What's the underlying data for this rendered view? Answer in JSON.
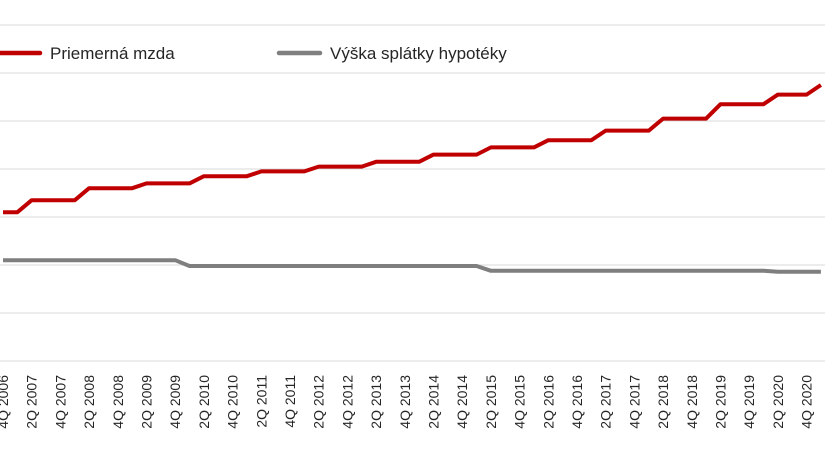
{
  "chart_data": {
    "type": "line",
    "title": "",
    "xlabel": "",
    "ylabel": "",
    "grid": true,
    "legend_position": "top-left",
    "ylim": [
      0,
      7
    ],
    "x": [
      "4Q 2006",
      "1Q 2007",
      "2Q 2007",
      "3Q 2007",
      "4Q 2007",
      "1Q 2008",
      "2Q 2008",
      "3Q 2008",
      "4Q 2008",
      "1Q 2009",
      "2Q 2009",
      "3Q 2009",
      "4Q 2009",
      "1Q 2010",
      "2Q 2010",
      "3Q 2010",
      "4Q 2010",
      "1Q 2011",
      "2Q 2011",
      "3Q 2011",
      "4Q 2011",
      "1Q 2012",
      "2Q 2012",
      "3Q 2012",
      "4Q 2012",
      "1Q 2013",
      "2Q 2013",
      "3Q 2013",
      "4Q 2013",
      "1Q 2014",
      "2Q 2014",
      "3Q 2014",
      "4Q 2014",
      "1Q 2015",
      "2Q 2015",
      "3Q 2015",
      "4Q 2015",
      "1Q 2016",
      "2Q 2016",
      "3Q 2016",
      "4Q 2016",
      "1Q 2017",
      "2Q 2017",
      "3Q 2017",
      "4Q 2017",
      "1Q 2018",
      "2Q 2018",
      "3Q 2018",
      "4Q 2018",
      "1Q 2019",
      "2Q 2019",
      "3Q 2019",
      "4Q 2019",
      "1Q 2020",
      "2Q 2020",
      "3Q 2020",
      "4Q 2020",
      "1Q 2021"
    ],
    "tick_labels": [
      "4Q 2006",
      "2Q 2007",
      "4Q 2007",
      "2Q 2008",
      "4Q 2008",
      "2Q 2009",
      "4Q 2009",
      "2Q 2010",
      "4Q 2010",
      "2Q 2011",
      "4Q 2011",
      "2Q 2012",
      "4Q 2012",
      "2Q 2013",
      "4Q 2013",
      "2Q 2014",
      "4Q 2014",
      "2Q 2015",
      "4Q 2015",
      "2Q 2016",
      "4Q 2016",
      "2Q 2017",
      "4Q 2017",
      "2Q 2018",
      "4Q 2018",
      "2Q 2019",
      "4Q 2019",
      "2Q 2020",
      "4Q 2020"
    ],
    "series": [
      {
        "name": "Priemerná mzda",
        "color": "#c00000",
        "values": [
          3.1,
          3.1,
          3.35,
          3.35,
          3.35,
          3.35,
          3.6,
          3.6,
          3.6,
          3.6,
          3.7,
          3.7,
          3.7,
          3.7,
          3.85,
          3.85,
          3.85,
          3.85,
          3.95,
          3.95,
          3.95,
          3.95,
          4.05,
          4.05,
          4.05,
          4.05,
          4.15,
          4.15,
          4.15,
          4.15,
          4.3,
          4.3,
          4.3,
          4.3,
          4.45,
          4.45,
          4.45,
          4.45,
          4.6,
          4.6,
          4.6,
          4.6,
          4.8,
          4.8,
          4.8,
          4.8,
          5.05,
          5.05,
          5.05,
          5.05,
          5.35,
          5.35,
          5.35,
          5.35,
          5.55,
          5.55,
          5.55,
          5.75
        ]
      },
      {
        "name": "Výška splátky hypotéky",
        "color": "#7f7f7f",
        "values": [
          2.1,
          2.1,
          2.1,
          2.1,
          2.1,
          2.1,
          2.1,
          2.1,
          2.1,
          2.1,
          2.1,
          2.1,
          2.1,
          1.98,
          1.98,
          1.98,
          1.98,
          1.98,
          1.98,
          1.98,
          1.98,
          1.98,
          1.98,
          1.98,
          1.98,
          1.98,
          1.98,
          1.98,
          1.98,
          1.98,
          1.98,
          1.98,
          1.98,
          1.98,
          1.88,
          1.88,
          1.88,
          1.88,
          1.88,
          1.88,
          1.88,
          1.88,
          1.88,
          1.88,
          1.88,
          1.88,
          1.88,
          1.88,
          1.88,
          1.88,
          1.88,
          1.88,
          1.88,
          1.88,
          1.86,
          1.86,
          1.86,
          1.86
        ]
      }
    ]
  }
}
